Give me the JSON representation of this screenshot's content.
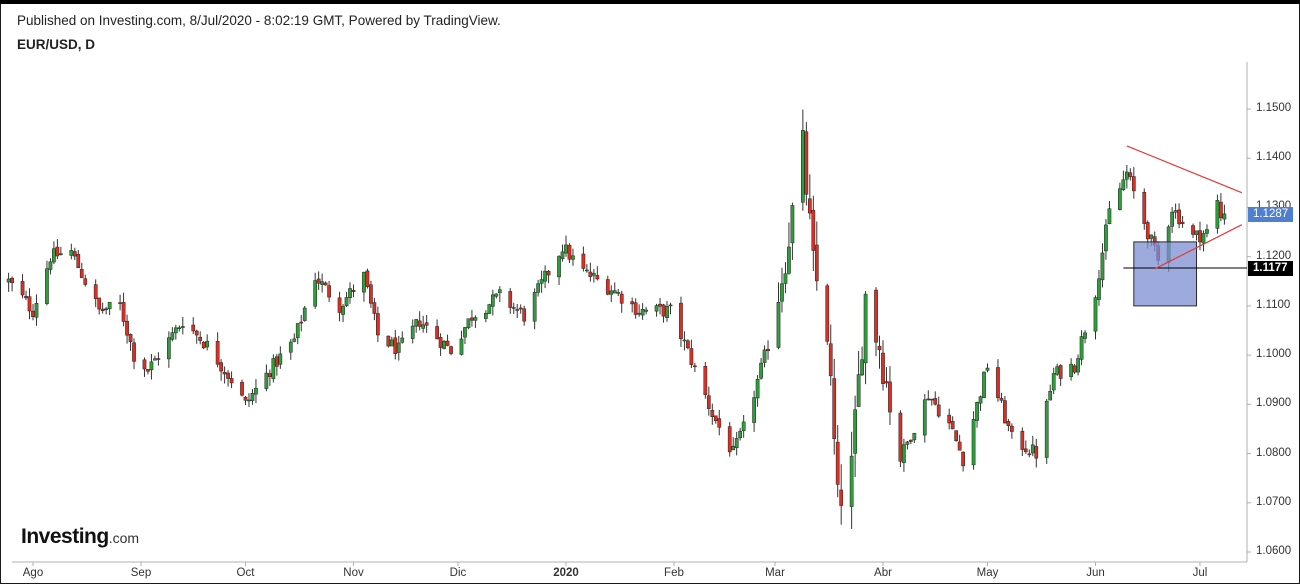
{
  "header": {
    "published": "Published on Investing.com, 8/Jul/2020 - 8:02:19 GMT, Powered by TradingView.",
    "symbol": "EUR/USD, D"
  },
  "branding": {
    "name": "Investing",
    "suffix": ".com"
  },
  "colors": {
    "up": "#2e9e3a",
    "down": "#d93025",
    "wick": "#333333",
    "trend": "#e53935",
    "box_fill": "#7b8ed1",
    "box_stroke": "#2a2a2a",
    "current_tag": "#4f7fd0",
    "level_tag": "#000000"
  },
  "chart_data": {
    "type": "candlestick",
    "ylim": [
      1.058,
      1.16
    ],
    "y_ticks": [
      "1.1500",
      "1.1400",
      "1.1300",
      "1.1200",
      "1.1100",
      "1.1000",
      "1.0900",
      "1.0800",
      "1.0700",
      "1.0600"
    ],
    "x_ticks": [
      {
        "label": "Ago",
        "date": "2019-08-01"
      },
      {
        "label": "Sep",
        "date": "2019-09-01"
      },
      {
        "label": "Oct",
        "date": "2019-10-01"
      },
      {
        "label": "Nov",
        "date": "2019-11-01"
      },
      {
        "label": "Dic",
        "date": "2019-12-01"
      },
      {
        "label": "2020",
        "date": "2020-01-01",
        "bold": true
      },
      {
        "label": "Feb",
        "date": "2020-02-01"
      },
      {
        "label": "Mar",
        "date": "2020-03-01"
      },
      {
        "label": "Abr",
        "date": "2020-04-01"
      },
      {
        "label": "May",
        "date": "2020-05-01"
      },
      {
        "label": "Jun",
        "date": "2020-06-01"
      },
      {
        "label": "Jul",
        "date": "2020-07-01"
      }
    ],
    "close_path": [
      [
        "2019-07-25",
        1.115
      ],
      [
        "2019-08-01",
        1.109
      ],
      [
        "2019-08-06",
        1.12
      ],
      [
        "2019-08-12",
        1.121
      ],
      [
        "2019-08-20",
        1.109
      ],
      [
        "2019-08-26",
        1.11
      ],
      [
        "2019-08-30",
        1.1
      ],
      [
        "2019-09-03",
        1.097
      ],
      [
        "2019-09-10",
        1.104
      ],
      [
        "2019-09-13",
        1.107
      ],
      [
        "2019-09-20",
        1.102
      ],
      [
        "2019-09-27",
        1.095
      ],
      [
        "2019-10-01",
        1.09
      ],
      [
        "2019-10-08",
        1.097
      ],
      [
        "2019-10-15",
        1.103
      ],
      [
        "2019-10-21",
        1.116
      ],
      [
        "2019-10-28",
        1.11
      ],
      [
        "2019-11-04",
        1.116
      ],
      [
        "2019-11-08",
        1.104
      ],
      [
        "2019-11-14",
        1.101
      ],
      [
        "2019-11-20",
        1.107
      ],
      [
        "2019-11-29",
        1.101
      ],
      [
        "2019-12-05",
        1.108
      ],
      [
        "2019-12-13",
        1.112
      ],
      [
        "2019-12-20",
        1.108
      ],
      [
        "2019-12-31",
        1.122
      ],
      [
        "2020-01-06",
        1.117
      ],
      [
        "2020-01-15",
        1.113
      ],
      [
        "2020-01-22",
        1.109
      ],
      [
        "2020-01-31",
        1.109
      ],
      [
        "2020-02-06",
        1.099
      ],
      [
        "2020-02-12",
        1.088
      ],
      [
        "2020-02-18",
        1.08
      ],
      [
        "2020-02-21",
        1.085
      ],
      [
        "2020-02-28",
        1.102
      ],
      [
        "2020-03-04",
        1.12
      ],
      [
        "2020-03-09",
        1.142
      ],
      [
        "2020-03-12",
        1.118
      ],
      [
        "2020-03-16",
        1.105
      ],
      [
        "2020-03-19",
        1.07
      ],
      [
        "2020-03-23",
        1.077
      ],
      [
        "2020-03-27",
        1.112
      ],
      [
        "2020-03-31",
        1.102
      ],
      [
        "2020-04-06",
        1.079
      ],
      [
        "2020-04-14",
        1.092
      ],
      [
        "2020-04-20",
        1.086
      ],
      [
        "2020-04-24",
        1.079
      ],
      [
        "2020-05-01",
        1.098
      ],
      [
        "2020-05-08",
        1.083
      ],
      [
        "2020-05-15",
        1.08
      ],
      [
        "2020-05-20",
        1.096
      ],
      [
        "2020-05-26",
        1.098
      ],
      [
        "2020-06-01",
        1.113
      ],
      [
        "2020-06-05",
        1.129
      ],
      [
        "2020-06-10",
        1.137
      ],
      [
        "2020-06-15",
        1.127
      ],
      [
        "2020-06-19",
        1.119
      ],
      [
        "2020-06-23",
        1.13
      ],
      [
        "2020-06-29",
        1.124
      ],
      [
        "2020-07-03",
        1.125
      ],
      [
        "2020-07-06",
        1.131
      ],
      [
        "2020-07-07",
        1.128
      ],
      [
        "2020-07-08",
        1.1287
      ]
    ],
    "last_price": "1.1287",
    "horizontal_level": {
      "price": "1.1177",
      "from": "2020-06-09"
    },
    "triangle": {
      "upper": [
        [
          "2020-06-10",
          1.1425
        ],
        [
          "2020-07-13",
          1.133
        ]
      ],
      "lower": [
        [
          "2020-06-18",
          1.1175
        ],
        [
          "2020-07-13",
          1.1265
        ]
      ]
    },
    "highlight_box": {
      "from": "2020-06-12",
      "to": "2020-06-30",
      "high": 1.123,
      "low": 1.11
    }
  }
}
